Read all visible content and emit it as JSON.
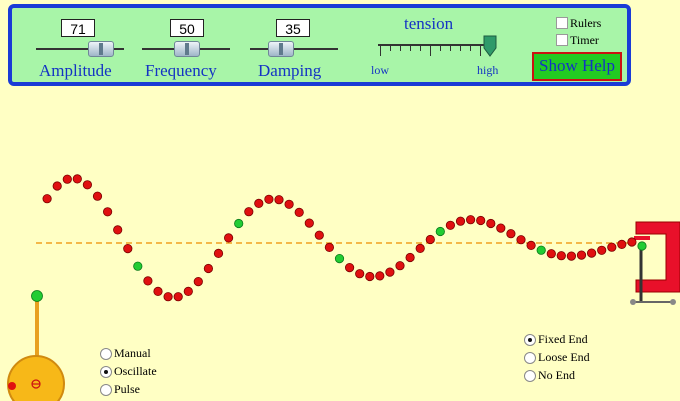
{
  "controls": {
    "amplitude": {
      "label": "Amplitude",
      "value": "71"
    },
    "frequency": {
      "label": "Frequency",
      "value": "50"
    },
    "damping": {
      "label": "Damping",
      "value": "35"
    },
    "tension": {
      "title": "tension",
      "low_label": "low",
      "high_label": "high",
      "level": 1.0
    }
  },
  "toggles": {
    "rulers": "Rulers",
    "timer": "Timer"
  },
  "help_button": "Show Help",
  "mode_options": [
    {
      "label": "Manual",
      "selected": false
    },
    {
      "label": "Oscillate",
      "selected": true
    },
    {
      "label": "Pulse",
      "selected": false
    }
  ],
  "end_options": [
    {
      "label": "Fixed End",
      "selected": true
    },
    {
      "label": "Loose End",
      "selected": false
    },
    {
      "label": "No End",
      "selected": false
    }
  ],
  "colors": {
    "bead": "#e01010",
    "marker_bead": "#22cc33",
    "panel": "#a8f5a8",
    "panel_border": "#1a3bd6",
    "clamp": "#e8102a",
    "equilibrium": "#f0a020"
  }
}
